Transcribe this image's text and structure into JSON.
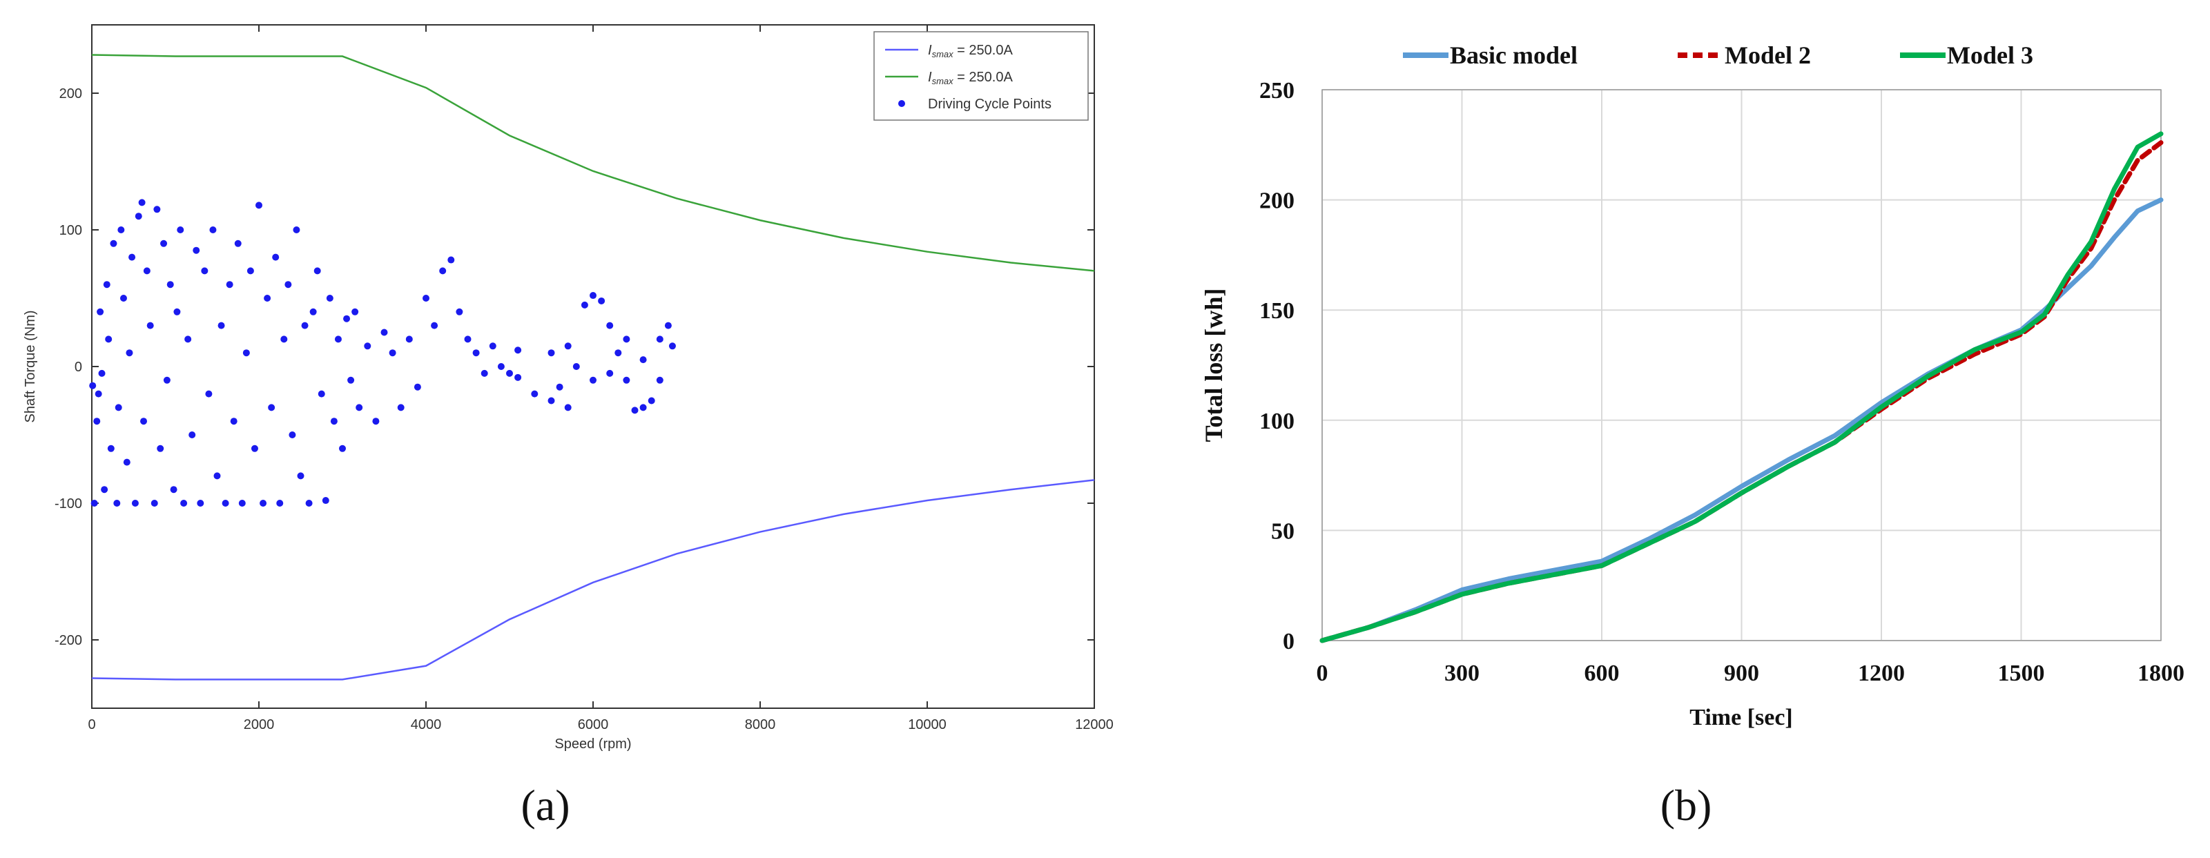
{
  "chart_data": [
    {
      "type": "scatter",
      "panel_label": "(a)",
      "xlabel": "Speed  (rpm)",
      "ylabel": "Shaft Torque  (Nm)",
      "xlim": [
        0,
        12000
      ],
      "ylim": [
        -250,
        250
      ],
      "x_ticks": [
        0,
        2000,
        4000,
        6000,
        8000,
        10000,
        12000
      ],
      "y_ticks": [
        -200,
        -100,
        0,
        100,
        200
      ],
      "grid": false,
      "legend_position": "top-right",
      "series": [
        {
          "name": "I_smax = 250.0A",
          "kind": "line",
          "color": "#5a5aff",
          "x": [
            0,
            1000,
            2000,
            3000,
            4000,
            5000,
            6000,
            7000,
            8000,
            9000,
            10000,
            11000,
            12000
          ],
          "y": [
            -228,
            -229,
            -229,
            -229,
            -219,
            -185,
            -158,
            -137,
            -121,
            -108,
            -98,
            -90,
            -83
          ]
        },
        {
          "name": "I_smax = 250.0A",
          "kind": "line",
          "color": "#3aa33a",
          "x": [
            0,
            1000,
            2000,
            3000,
            4000,
            5000,
            6000,
            7000,
            8000,
            9000,
            10000,
            11000,
            12000
          ],
          "y": [
            228,
            227,
            227,
            227,
            204,
            169,
            143,
            123,
            107,
            94,
            84,
            76,
            70
          ]
        },
        {
          "name": "Driving Cycle Points",
          "kind": "scatter",
          "color": "#1a1aee",
          "points": [
            [
              10,
              -14
            ],
            [
              30,
              -100
            ],
            [
              60,
              -40
            ],
            [
              80,
              -20
            ],
            [
              100,
              40
            ],
            [
              120,
              -5
            ],
            [
              150,
              -90
            ],
            [
              180,
              60
            ],
            [
              200,
              20
            ],
            [
              230,
              -60
            ],
            [
              260,
              90
            ],
            [
              300,
              -100
            ],
            [
              320,
              -30
            ],
            [
              350,
              100
            ],
            [
              380,
              50
            ],
            [
              420,
              -70
            ],
            [
              450,
              10
            ],
            [
              480,
              80
            ],
            [
              520,
              -100
            ],
            [
              560,
              110
            ],
            [
              600,
              120
            ],
            [
              620,
              -40
            ],
            [
              660,
              70
            ],
            [
              700,
              30
            ],
            [
              750,
              -100
            ],
            [
              780,
              115
            ],
            [
              820,
              -60
            ],
            [
              860,
              90
            ],
            [
              900,
              -10
            ],
            [
              940,
              60
            ],
            [
              980,
              -90
            ],
            [
              1020,
              40
            ],
            [
              1060,
              100
            ],
            [
              1100,
              -100
            ],
            [
              1150,
              20
            ],
            [
              1200,
              -50
            ],
            [
              1250,
              85
            ],
            [
              1300,
              -100
            ],
            [
              1350,
              70
            ],
            [
              1400,
              -20
            ],
            [
              1450,
              100
            ],
            [
              1500,
              -80
            ],
            [
              1550,
              30
            ],
            [
              1600,
              -100
            ],
            [
              1650,
              60
            ],
            [
              1700,
              -40
            ],
            [
              1750,
              90
            ],
            [
              1800,
              -100
            ],
            [
              1850,
              10
            ],
            [
              1900,
              70
            ],
            [
              1950,
              -60
            ],
            [
              2000,
              118
            ],
            [
              2050,
              -100
            ],
            [
              2100,
              50
            ],
            [
              2150,
              -30
            ],
            [
              2200,
              80
            ],
            [
              2250,
              -100
            ],
            [
              2300,
              20
            ],
            [
              2350,
              60
            ],
            [
              2400,
              -50
            ],
            [
              2450,
              100
            ],
            [
              2500,
              -80
            ],
            [
              2550,
              30
            ],
            [
              2600,
              -100
            ],
            [
              2650,
              40
            ],
            [
              2700,
              70
            ],
            [
              2750,
              -20
            ],
            [
              2800,
              -98
            ],
            [
              2850,
              50
            ],
            [
              2900,
              -40
            ],
            [
              2950,
              20
            ],
            [
              3000,
              -60
            ],
            [
              3050,
              35
            ],
            [
              3100,
              -10
            ],
            [
              3150,
              40
            ],
            [
              3200,
              -30
            ],
            [
              3300,
              15
            ],
            [
              3400,
              -40
            ],
            [
              3500,
              25
            ],
            [
              3600,
              10
            ],
            [
              3700,
              -30
            ],
            [
              3800,
              20
            ],
            [
              3900,
              -15
            ],
            [
              4000,
              50
            ],
            [
              4100,
              30
            ],
            [
              4200,
              70
            ],
            [
              4300,
              78
            ],
            [
              4400,
              40
            ],
            [
              4500,
              20
            ],
            [
              4600,
              10
            ],
            [
              4700,
              -5
            ],
            [
              4800,
              15
            ],
            [
              4900,
              0
            ],
            [
              5000,
              -5
            ],
            [
              5100,
              12
            ],
            [
              5100,
              -8
            ],
            [
              5300,
              -20
            ],
            [
              5500,
              -25
            ],
            [
              5700,
              -30
            ],
            [
              5900,
              45
            ],
            [
              6000,
              52
            ],
            [
              6100,
              48
            ],
            [
              6200,
              30
            ],
            [
              6300,
              10
            ],
            [
              6400,
              -10
            ],
            [
              6500,
              -32
            ],
            [
              6600,
              -30
            ],
            [
              6700,
              -25
            ],
            [
              6800,
              20
            ],
            [
              6900,
              30
            ],
            [
              6950,
              15
            ],
            [
              6800,
              -10
            ],
            [
              6600,
              5
            ],
            [
              6400,
              20
            ],
            [
              6200,
              -5
            ],
            [
              6000,
              -10
            ],
            [
              5800,
              0
            ],
            [
              5700,
              15
            ],
            [
              5600,
              -15
            ],
            [
              5500,
              10
            ]
          ]
        }
      ]
    },
    {
      "type": "line",
      "panel_label": "(b)",
      "xlabel": "Time [sec]",
      "ylabel": "Total loss [wh]",
      "xlim": [
        0,
        1800
      ],
      "ylim": [
        0,
        250
      ],
      "x_ticks": [
        0,
        300,
        600,
        900,
        1200,
        1500,
        1800
      ],
      "y_ticks": [
        0,
        50,
        100,
        150,
        200,
        250
      ],
      "grid": true,
      "legend_position": "top",
      "series": [
        {
          "name": "Basic model",
          "color": "#5b9bd5",
          "dash": "solid",
          "x": [
            0,
            100,
            200,
            300,
            400,
            500,
            600,
            700,
            800,
            900,
            1000,
            1100,
            1200,
            1300,
            1400,
            1500,
            1550,
            1600,
            1650,
            1700,
            1750,
            1800
          ],
          "y": [
            0,
            6,
            14,
            23,
            28,
            32,
            36,
            46,
            57,
            70,
            82,
            93,
            108,
            121,
            132,
            141,
            150,
            160,
            170,
            183,
            195,
            200
          ]
        },
        {
          "name": "Model 2",
          "color": "#c00000",
          "dash": "dashed",
          "x": [
            0,
            100,
            200,
            300,
            400,
            500,
            600,
            700,
            800,
            900,
            1000,
            1100,
            1200,
            1300,
            1400,
            1500,
            1550,
            1600,
            1650,
            1700,
            1750,
            1800
          ],
          "y": [
            0,
            6,
            13,
            21,
            26,
            30,
            34,
            44,
            54,
            67,
            79,
            90,
            105,
            119,
            130,
            139,
            147,
            164,
            178,
            200,
            218,
            226
          ]
        },
        {
          "name": "Model 3",
          "color": "#00b050",
          "dash": "solid",
          "x": [
            0,
            100,
            200,
            300,
            400,
            500,
            600,
            700,
            800,
            900,
            1000,
            1100,
            1200,
            1300,
            1400,
            1500,
            1550,
            1600,
            1650,
            1700,
            1750,
            1800
          ],
          "y": [
            0,
            6,
            13,
            21,
            26,
            30,
            34,
            44,
            54,
            67,
            79,
            90,
            106,
            120,
            132,
            140,
            148,
            166,
            181,
            205,
            224,
            230
          ]
        }
      ]
    }
  ]
}
